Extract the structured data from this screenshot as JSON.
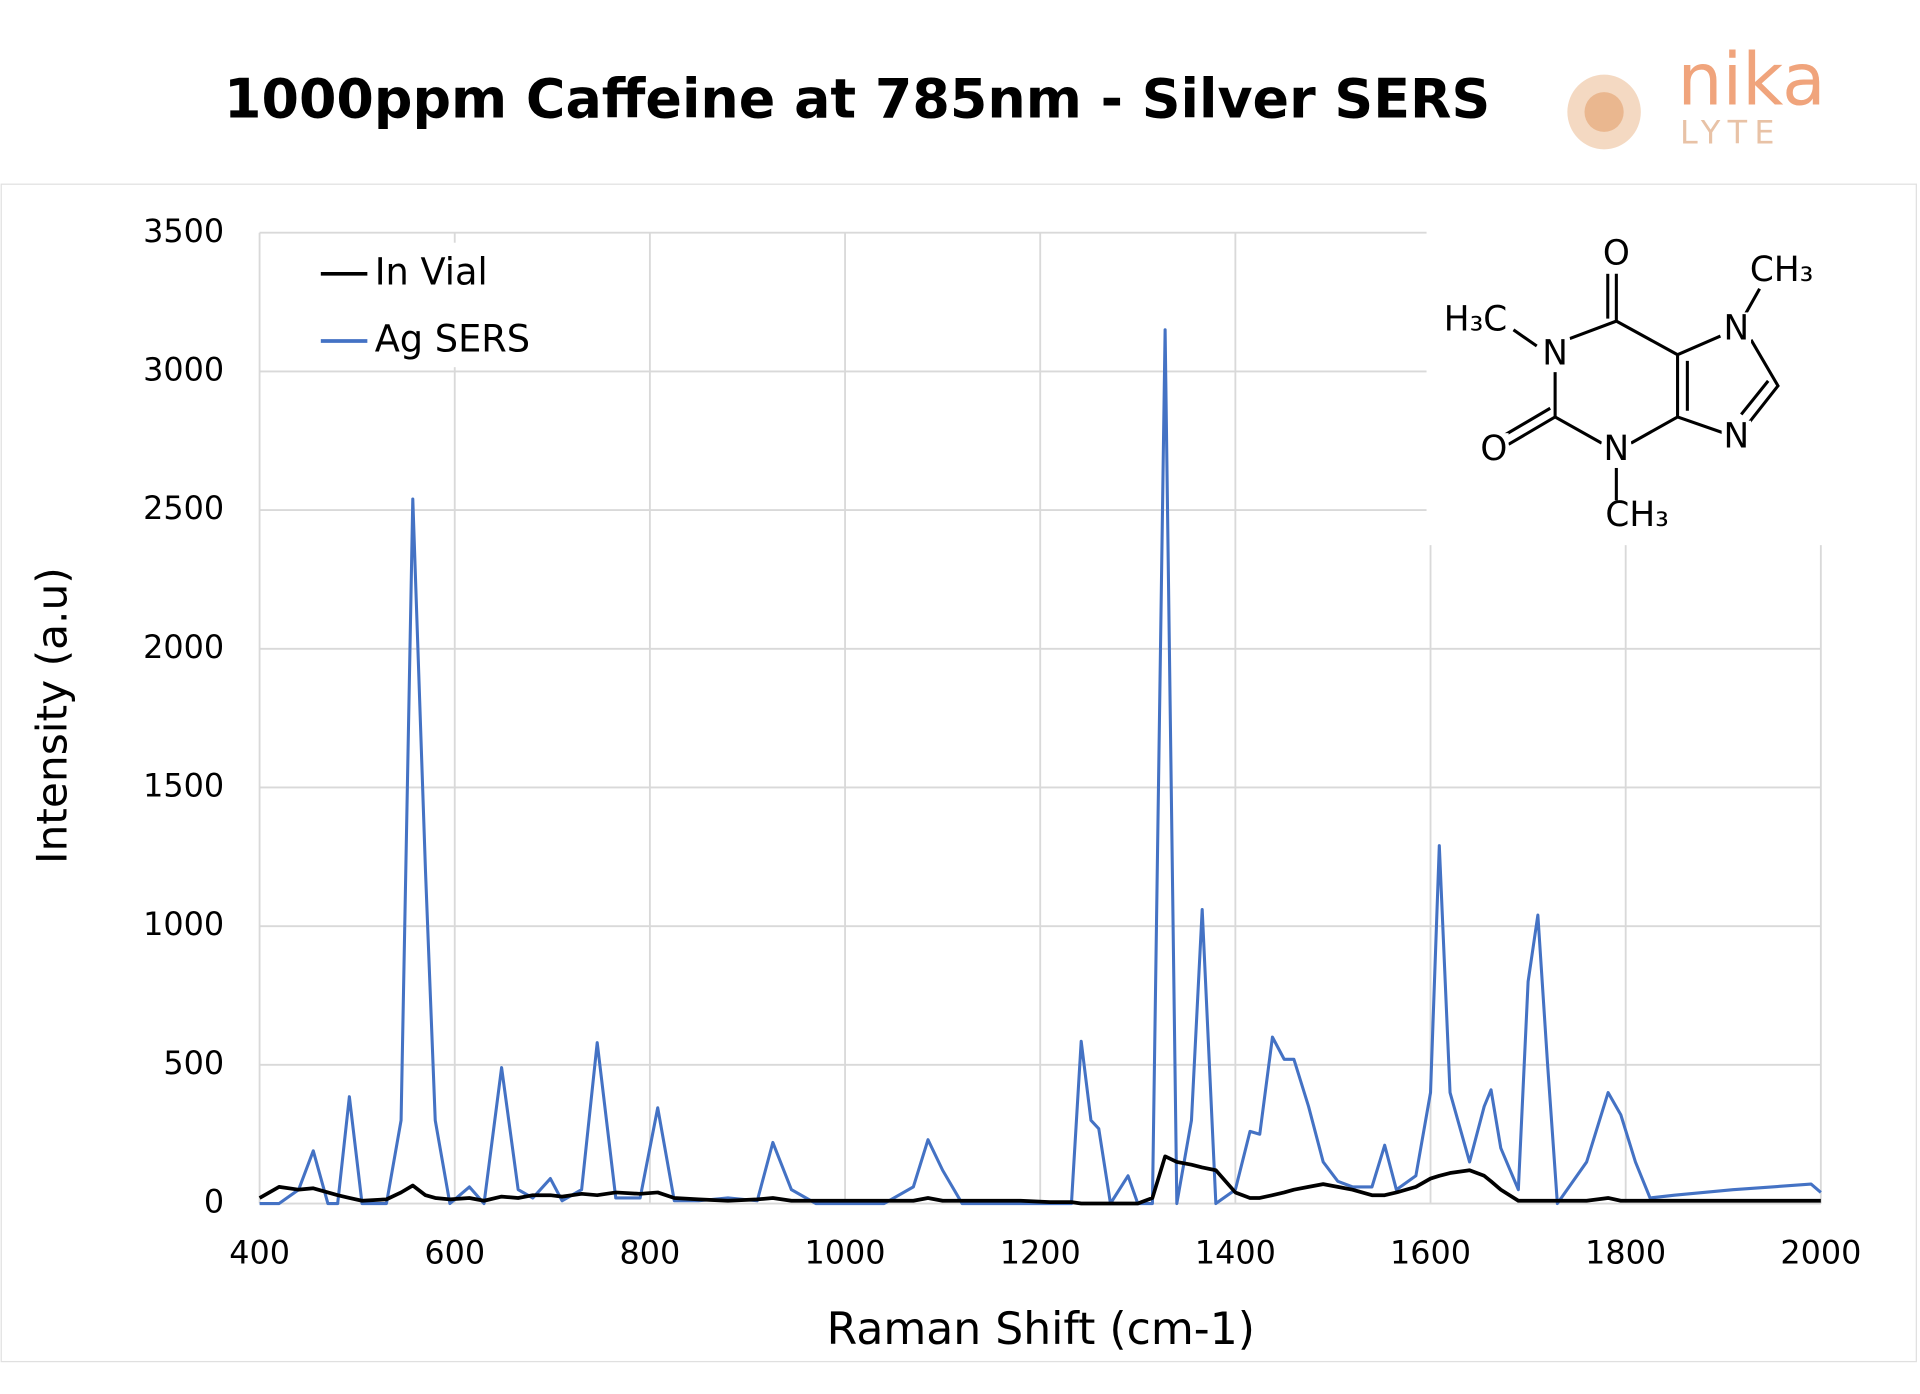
{
  "chart_data": {
    "type": "line",
    "title": "1000ppm Caffeine at 785nm - Silver SERS",
    "logo": {
      "name": "nika",
      "sub": "LYTE"
    },
    "x_label": "Raman Shift (cm-1)",
    "y_label": "Intensity (a.u)",
    "xlim": [
      400,
      2000
    ],
    "xticks": [
      400,
      600,
      800,
      1000,
      1200,
      1400,
      1600,
      1800,
      2000
    ],
    "ylim": [
      0,
      3500
    ],
    "yticks": [
      0,
      500,
      1000,
      1500,
      2000,
      2500,
      3000,
      3500
    ],
    "grid": true,
    "legend": "upper left",
    "molecule": {
      "labels": [
        "O",
        "CH₃",
        "H₃C",
        "N",
        "N",
        "N",
        "N",
        "O",
        "CH₃"
      ]
    },
    "x": [
      400,
      420,
      440,
      455,
      470,
      480,
      492,
      505,
      530,
      545,
      557,
      570,
      580,
      595,
      615,
      630,
      648,
      665,
      680,
      698,
      710,
      730,
      746,
      765,
      790,
      808,
      825,
      850,
      880,
      910,
      926,
      945,
      970,
      1000,
      1040,
      1070,
      1085,
      1100,
      1120,
      1150,
      1180,
      1210,
      1232,
      1242,
      1252,
      1260,
      1272,
      1290,
      1300,
      1315,
      1328,
      1340,
      1355,
      1366,
      1380,
      1400,
      1415,
      1425,
      1438,
      1450,
      1460,
      1475,
      1490,
      1505,
      1520,
      1540,
      1553,
      1565,
      1585,
      1600,
      1609,
      1620,
      1640,
      1655,
      1662,
      1672,
      1690,
      1700,
      1710,
      1720,
      1730,
      1760,
      1782,
      1795,
      1810,
      1825,
      1850,
      1880,
      1910,
      1950,
      1990,
      2000
    ],
    "series": [
      {
        "name": "In Vial",
        "color": "#000000",
        "values": [
          20,
          60,
          50,
          55,
          40,
          30,
          20,
          10,
          15,
          40,
          65,
          30,
          20,
          15,
          20,
          10,
          25,
          20,
          30,
          30,
          25,
          35,
          30,
          40,
          35,
          40,
          20,
          15,
          10,
          15,
          20,
          10,
          10,
          10,
          10,
          10,
          20,
          10,
          10,
          10,
          10,
          5,
          5,
          0,
          0,
          0,
          0,
          0,
          0,
          20,
          170,
          150,
          140,
          130,
          120,
          40,
          20,
          20,
          30,
          40,
          50,
          60,
          70,
          60,
          50,
          30,
          30,
          40,
          60,
          90,
          100,
          110,
          120,
          100,
          80,
          50,
          10,
          10,
          10,
          10,
          10,
          10,
          20,
          10,
          10,
          10,
          10,
          10,
          10,
          10,
          10,
          10
        ]
      },
      {
        "name": "Ag SERS",
        "color": "#4472c4",
        "values": [
          0,
          0,
          50,
          190,
          0,
          0,
          385,
          0,
          0,
          300,
          2540,
          1200,
          300,
          0,
          60,
          0,
          490,
          50,
          20,
          90,
          10,
          50,
          580,
          20,
          20,
          345,
          10,
          10,
          20,
          10,
          220,
          50,
          0,
          0,
          0,
          60,
          230,
          120,
          0,
          0,
          0,
          0,
          0,
          585,
          300,
          270,
          0,
          100,
          0,
          0,
          3150,
          0,
          300,
          1060,
          0,
          50,
          260,
          250,
          600,
          520,
          520,
          350,
          150,
          80,
          60,
          60,
          210,
          50,
          100,
          400,
          1290,
          400,
          150,
          350,
          410,
          200,
          50,
          800,
          1040,
          500,
          0,
          150,
          400,
          320,
          150,
          20,
          30,
          40,
          50,
          60,
          70,
          40
        ]
      }
    ]
  }
}
